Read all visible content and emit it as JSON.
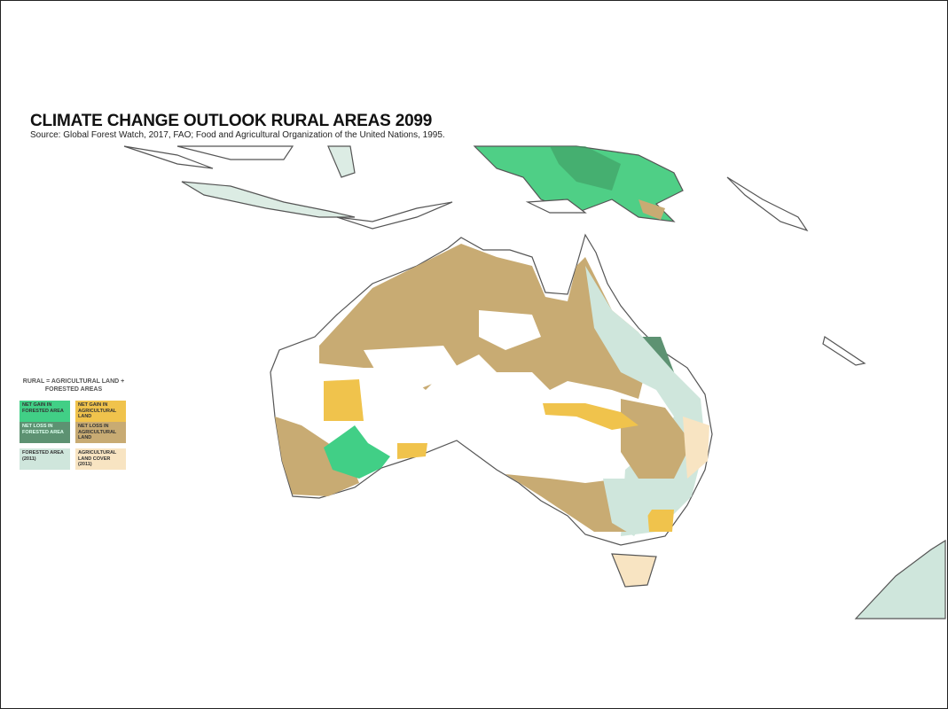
{
  "title": "CLIMATE CHANGE OUTLOOK RURAL AREAS 2099",
  "source": "Source: Global Forest Watch, 2017, FAO;  Food and Agricultural Organization of the United Nations, 1995.",
  "legend": {
    "heading_line1": "RURAL = AGRICULTURAL LAND +",
    "heading_line2": "FORESTED AREAS",
    "items": [
      {
        "label": "NET GAIN IN FORESTED AREA",
        "color": "#41cf86"
      },
      {
        "label": "NET GAIN IN AGRICULTURAL LAND",
        "color": "#f0c34c"
      },
      {
        "label": "NET LOSS IN FORESTED AREA",
        "color": "#5d9272"
      },
      {
        "label": "NET LOSS IN AGRICULTURAL LAND",
        "color": "#c8ab73"
      },
      {
        "label": "FORESTED AREA (2011)",
        "color": "#cfe6dc"
      },
      {
        "label": "AGRICULTURAL LAND COVER (2011)",
        "color": "#f8e4c2"
      }
    ]
  }
}
